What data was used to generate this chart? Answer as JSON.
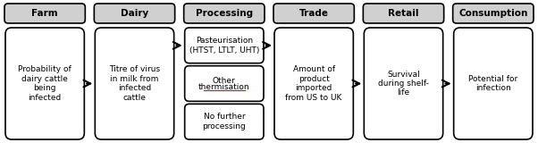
{
  "headers": [
    "Farm",
    "Dairy",
    "Processing",
    "Trade",
    "Retail",
    "Consumption"
  ],
  "header_color": "#d0d0d0",
  "header_text_color": "#000000",
  "box_color": "#ffffff",
  "box_border_color": "#000000",
  "arrow_color": "#000000",
  "body_texts": [
    "Probability of\ndairy cattle\nbeing\ninfected",
    "Titre of virus\nin milk from\ninfected\ncattle",
    [
      "Pasteurisation\n(HTST, LTLT, UHT)",
      "Other\nthermisation",
      "No further\nprocessing"
    ],
    "Amount of\nproduct\nimported\nfrom US to UK",
    "Survival\nduring shelf-\nlife",
    "Potential for\ninfection"
  ],
  "thermisation_underline": true,
  "fig_width": 6.02,
  "fig_height": 1.6,
  "dpi": 100
}
